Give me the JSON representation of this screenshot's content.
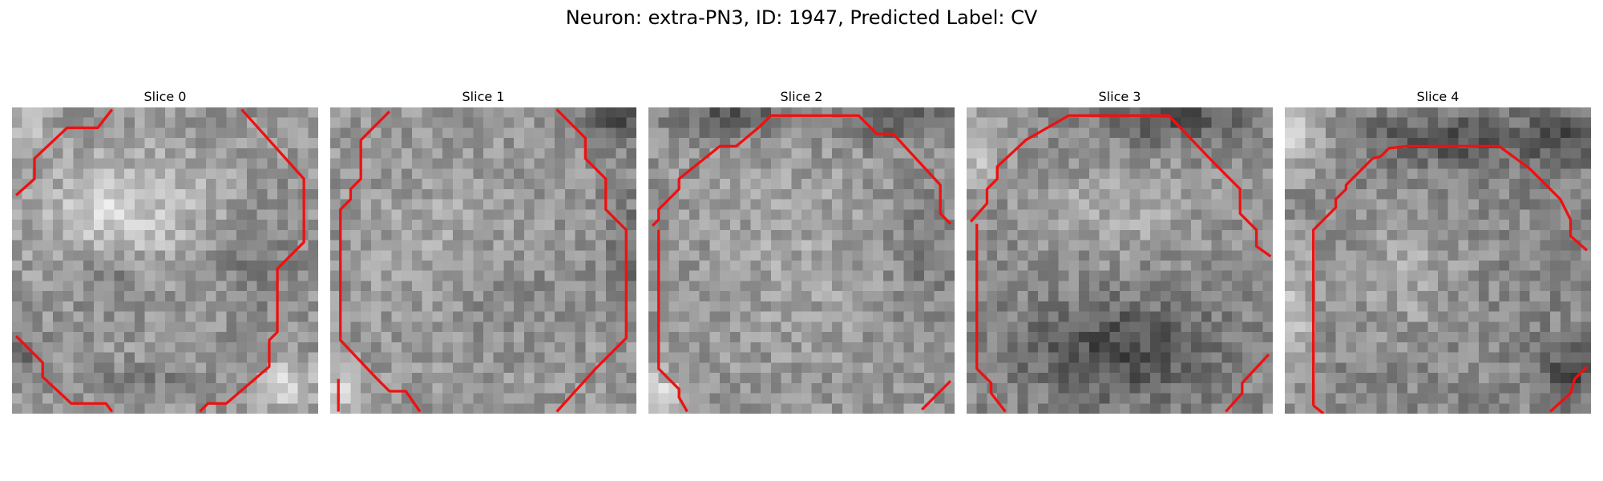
{
  "figure": {
    "title": "Neuron: extra-PN3, ID: 1947, Predicted Label: CV"
  },
  "panels": [
    {
      "title": "Slice 0"
    },
    {
      "title": "Slice 1"
    },
    {
      "title": "Slice 2"
    },
    {
      "title": "Slice 3"
    },
    {
      "title": "Slice 4"
    }
  ],
  "colors": {
    "contour": "#ee1111",
    "background": "#ffffff"
  }
}
